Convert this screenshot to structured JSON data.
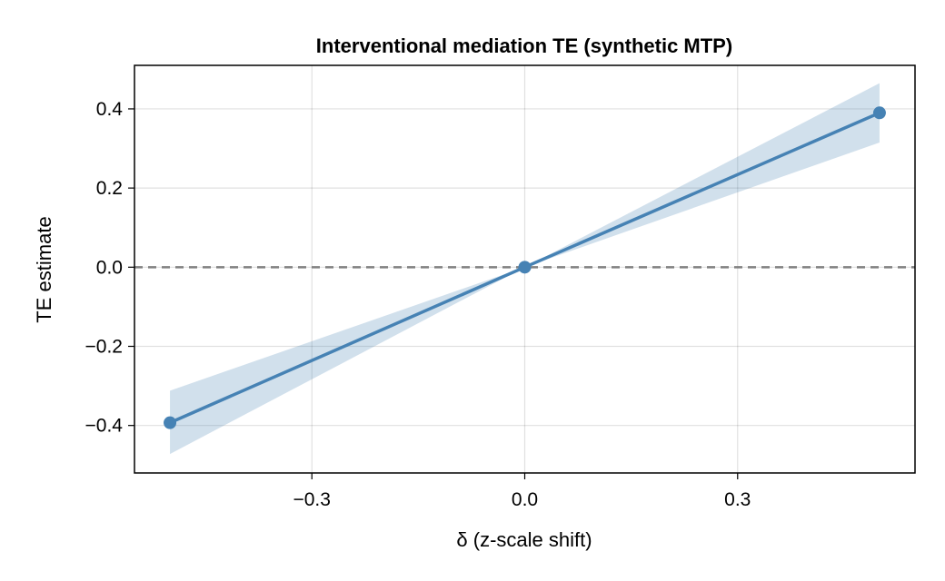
{
  "chart_data": {
    "type": "line",
    "title": "Interventional mediation TE (synthetic MTP)",
    "xlabel": "δ (z-scale shift)",
    "ylabel": "TE estimate",
    "xlim": [
      -0.55,
      0.55
    ],
    "ylim": [
      -0.52,
      0.51
    ],
    "xticks": [
      -0.3,
      0.0,
      0.3
    ],
    "xtick_labels": [
      "−0.3",
      "0.0",
      "0.3"
    ],
    "yticks": [
      0.4,
      0.2,
      0.0,
      -0.2,
      -0.4
    ],
    "ytick_labels": [
      "0.4",
      "0.2",
      "0.0",
      "−0.2",
      "−0.4"
    ],
    "grid": true,
    "reference_line": {
      "y": 0.0,
      "style": "dashed",
      "color": "#808080"
    },
    "series": [
      {
        "x": [
          -0.5,
          0.0,
          0.5
        ],
        "y": [
          -0.393,
          0.0,
          0.39
        ],
        "ci_lower": [
          -0.472,
          0.0,
          0.315
        ],
        "ci_upper": [
          -0.312,
          0.0,
          0.465
        ],
        "color": "#4682b4",
        "band_color": "#4682b4"
      }
    ]
  }
}
